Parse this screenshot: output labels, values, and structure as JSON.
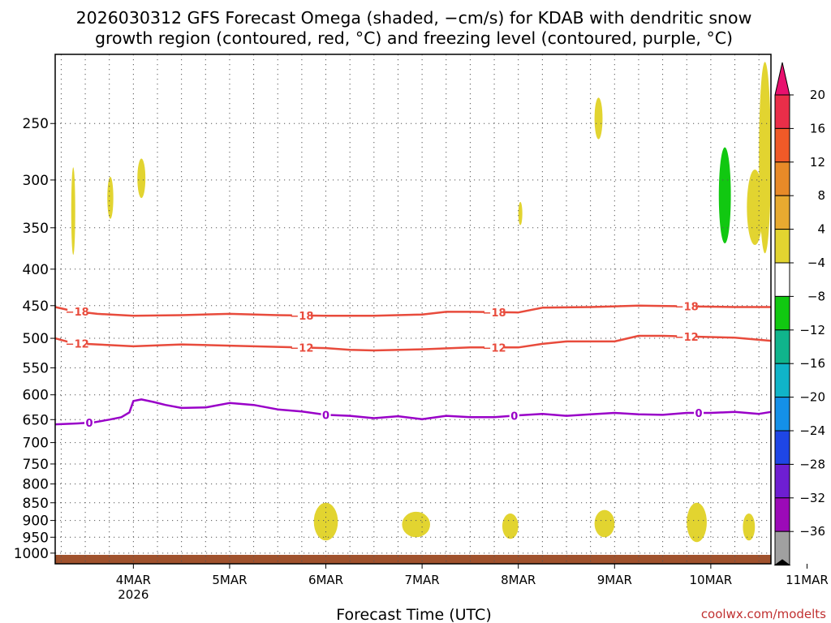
{
  "colors": {
    "omega_shade_4_8": "#e2d430",
    "omega_shade_neg4_neg8": "#11c811",
    "dendritic_contours": "#e84b3c",
    "freezing_level": "#9900c8",
    "ground": "#a0522d",
    "credit": "#c03030"
  },
  "chart_data": {
    "type": "contour-time-height",
    "title_line1": "2026030312 GFS Forecast Omega (shaded, −cm/s) for KDAB with dendritic snow",
    "title_line2": "growth region (contoured, red, °C) and freezing level (contoured, purple, °C)",
    "xlabel": "Forecast Time (UTC)",
    "credit": "coolwx.com/modelts",
    "x_range_hours": [
      -7.5,
      171
    ],
    "x_ticks": [
      {
        "label": "4MAR",
        "sub": "2026",
        "hour": 12
      },
      {
        "label": "5MAR",
        "sub": "",
        "hour": 36
      },
      {
        "label": "6MAR",
        "sub": "",
        "hour": 60
      },
      {
        "label": "7MAR",
        "sub": "",
        "hour": 84
      },
      {
        "label": "8MAR",
        "sub": "",
        "hour": 108
      },
      {
        "label": "9MAR",
        "sub": "",
        "hour": 132
      },
      {
        "label": "10MAR",
        "sub": "",
        "hour": 156
      },
      {
        "label": "11MAR",
        "sub": "",
        "hour": 180
      }
    ],
    "y_axis": "Pressure (hPa), log scale, decreasing upward",
    "y_range_hpa": [
      1035,
      200
    ],
    "y_ticks": [
      250,
      300,
      350,
      400,
      450,
      500,
      550,
      600,
      650,
      700,
      750,
      800,
      850,
      900,
      950,
      1000
    ],
    "colorbar": {
      "labels": [
        "20",
        "16",
        "12",
        "8",
        "4",
        "−4",
        "−8",
        "−12",
        "−16",
        "−20",
        "−24",
        "−28",
        "−32",
        "−36"
      ],
      "colors": [
        "#ea2e49",
        "#f05a28",
        "#e88a28",
        "#e8aa30",
        "#e2d430",
        "#ffffff",
        "#11c811",
        "#10b48c",
        "#10b4c8",
        "#1490e8",
        "#1e46e6",
        "#6e1ed2",
        "#9c0ab8",
        "#a0a0a0"
      ],
      "top_arrow_color": "#e8106e",
      "bottom_arrow_color": "#000000"
    },
    "series": [
      {
        "name": "-18 °C isotherm",
        "color": "#e84b3c",
        "label": "−18",
        "hours": [
          -7.5,
          -3,
          3,
          12,
          24,
          36,
          48,
          60,
          72,
          84,
          90,
          96,
          108,
          114,
          126,
          138,
          150,
          162,
          171
        ],
        "pressure_hpa": [
          452,
          458,
          462,
          465,
          464,
          462,
          464,
          465,
          465,
          463,
          459,
          459,
          460,
          453,
          452,
          450,
          451,
          452,
          452
        ],
        "label_hours": [
          -2,
          54,
          102,
          150
        ]
      },
      {
        "name": "-12 °C isotherm",
        "color": "#e84b3c",
        "label": "−12",
        "hours": [
          -7.5,
          -3,
          3,
          12,
          24,
          36,
          48,
          60,
          66,
          72,
          84,
          96,
          108,
          114,
          120,
          132,
          138,
          144,
          150,
          162,
          171
        ],
        "pressure_hpa": [
          500,
          508,
          510,
          513,
          510,
          512,
          514,
          516,
          519,
          520,
          518,
          515,
          515,
          509,
          505,
          505,
          496,
          496,
          497,
          499,
          504
        ],
        "label_hours": [
          -2,
          54,
          102,
          150
        ]
      },
      {
        "name": "0 °C isotherm (freezing level)",
        "color": "#9900c8",
        "label": "0",
        "hours": [
          -7.5,
          -2,
          2,
          6,
          9,
          11,
          12,
          14,
          17,
          20,
          24,
          30,
          36,
          42,
          48,
          54,
          60,
          66,
          72,
          78,
          84,
          90,
          96,
          102,
          108,
          114,
          120,
          126,
          132,
          138,
          144,
          150,
          156,
          162,
          168,
          171
        ],
        "pressure_hpa": [
          660,
          658,
          656,
          650,
          645,
          635,
          612,
          609,
          614,
          620,
          626,
          625,
          616,
          620,
          629,
          633,
          640,
          642,
          647,
          643,
          649,
          642,
          645,
          645,
          641,
          638,
          642,
          639,
          636,
          639,
          640,
          636,
          636,
          634,
          638,
          634
        ],
        "label_hours": [
          1,
          60,
          107,
          153
        ]
      }
    ],
    "omega_regions_approx": [
      {
        "value_cm_s": "4 to 8",
        "start_hour": -3.5,
        "end_hour": -2.5,
        "top_hpa": 288,
        "bottom_hpa": 382
      },
      {
        "value_cm_s": "4 to 8",
        "start_hour": 5.5,
        "end_hour": 7,
        "top_hpa": 297,
        "bottom_hpa": 340
      },
      {
        "value_cm_s": "4 to 8",
        "start_hour": 13,
        "end_hour": 15,
        "top_hpa": 280,
        "bottom_hpa": 318
      },
      {
        "value_cm_s": "4 to 8",
        "start_hour": 108,
        "end_hour": 109,
        "top_hpa": 322,
        "bottom_hpa": 347
      },
      {
        "value_cm_s": "4 to 8",
        "start_hour": 127,
        "end_hour": 129,
        "top_hpa": 230,
        "bottom_hpa": 263
      },
      {
        "value_cm_s": "4 to 8",
        "start_hour": 165,
        "end_hour": 169,
        "top_hpa": 290,
        "bottom_hpa": 370
      },
      {
        "value_cm_s": "4 to 8",
        "start_hour": 168,
        "end_hour": 171,
        "top_hpa": 205,
        "bottom_hpa": 380
      },
      {
        "value_cm_s": "4 to 8",
        "start_hour": 57,
        "end_hour": 63,
        "top_hpa": 850,
        "bottom_hpa": 960
      },
      {
        "value_cm_s": "4 to 8",
        "start_hour": 79,
        "end_hour": 86,
        "top_hpa": 875,
        "bottom_hpa": 950
      },
      {
        "value_cm_s": "4 to 8",
        "start_hour": 104,
        "end_hour": 108,
        "top_hpa": 880,
        "bottom_hpa": 955
      },
      {
        "value_cm_s": "4 to 8",
        "start_hour": 127,
        "end_hour": 132,
        "top_hpa": 870,
        "bottom_hpa": 950
      },
      {
        "value_cm_s": "4 to 8",
        "start_hour": 150,
        "end_hour": 155,
        "top_hpa": 850,
        "bottom_hpa": 965
      },
      {
        "value_cm_s": "4 to 8",
        "start_hour": 164,
        "end_hour": 167,
        "top_hpa": 880,
        "bottom_hpa": 960
      },
      {
        "value_cm_s": "-4 to -8",
        "start_hour": 158,
        "end_hour": 161,
        "top_hpa": 270,
        "bottom_hpa": 368
      }
    ]
  }
}
